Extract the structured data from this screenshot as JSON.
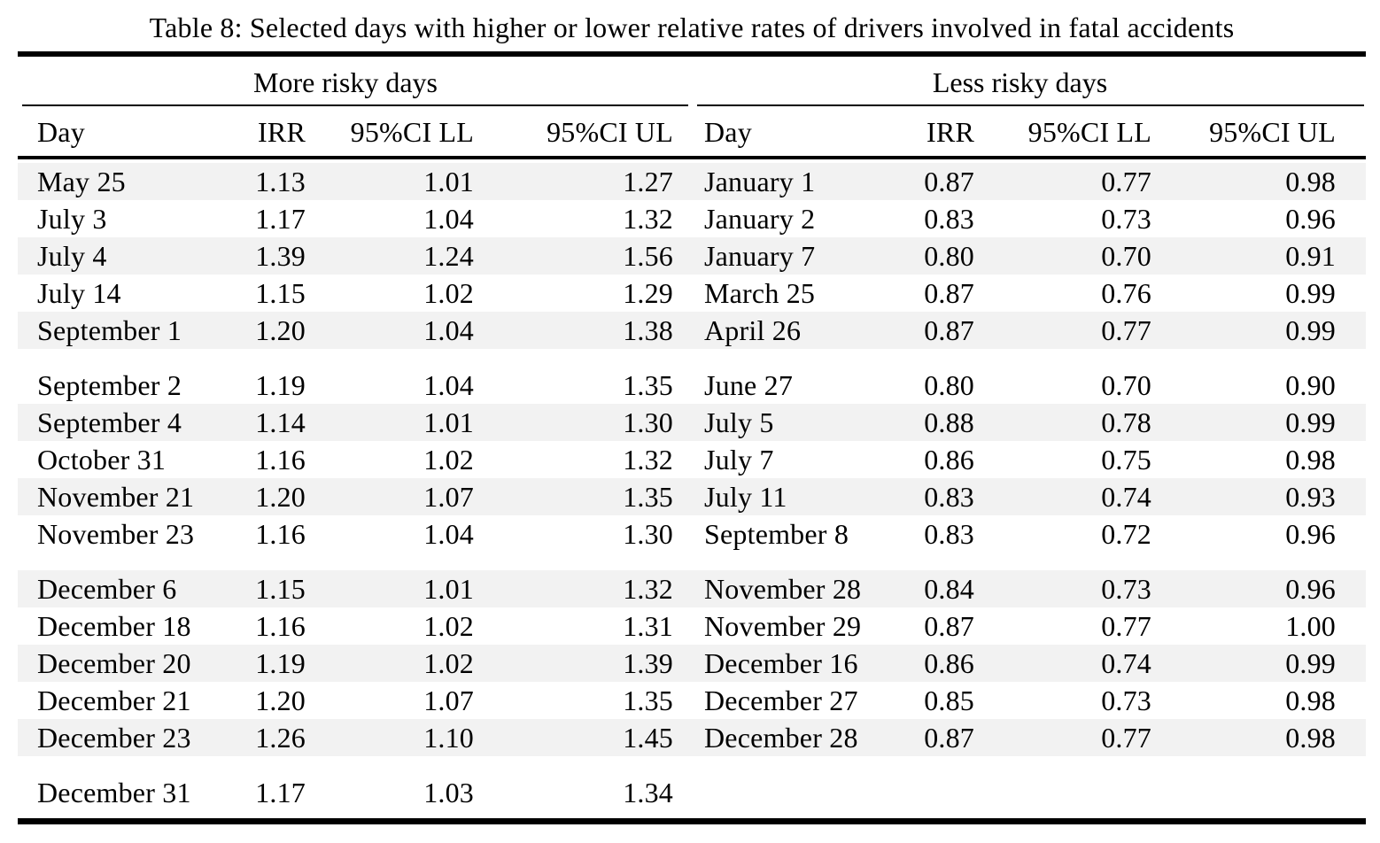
{
  "caption": "Table 8: Selected days with higher or lower relative rates of drivers involved in fatal accidents",
  "groups": [
    {
      "label": "More risky days"
    },
    {
      "label": "Less risky days"
    }
  ],
  "columns": [
    "Day",
    "IRR",
    "95%CI LL",
    "95%CI UL"
  ],
  "colors": {
    "stripe": "#f2f2f2",
    "rule": "#000000",
    "text": "#000000",
    "background": "#ffffff"
  },
  "more_risky": {
    "rows": [
      {
        "day": "May 25",
        "irr": "1.13",
        "ci_ll": "1.01",
        "ci_ul": "1.27"
      },
      {
        "day": "July 3",
        "irr": "1.17",
        "ci_ll": "1.04",
        "ci_ul": "1.32"
      },
      {
        "day": "July 4",
        "irr": "1.39",
        "ci_ll": "1.24",
        "ci_ul": "1.56"
      },
      {
        "day": "July 14",
        "irr": "1.15",
        "ci_ll": "1.02",
        "ci_ul": "1.29"
      },
      {
        "day": "September 1",
        "irr": "1.20",
        "ci_ll": "1.04",
        "ci_ul": "1.38"
      },
      {
        "day": "September 2",
        "irr": "1.19",
        "ci_ll": "1.04",
        "ci_ul": "1.35"
      },
      {
        "day": "September 4",
        "irr": "1.14",
        "ci_ll": "1.01",
        "ci_ul": "1.30"
      },
      {
        "day": "October 31",
        "irr": "1.16",
        "ci_ll": "1.02",
        "ci_ul": "1.32"
      },
      {
        "day": "November 21",
        "irr": "1.20",
        "ci_ll": "1.07",
        "ci_ul": "1.35"
      },
      {
        "day": "November 23",
        "irr": "1.16",
        "ci_ll": "1.04",
        "ci_ul": "1.30"
      },
      {
        "day": "December 6",
        "irr": "1.15",
        "ci_ll": "1.01",
        "ci_ul": "1.32"
      },
      {
        "day": "December 18",
        "irr": "1.16",
        "ci_ll": "1.02",
        "ci_ul": "1.31"
      },
      {
        "day": "December 20",
        "irr": "1.19",
        "ci_ll": "1.02",
        "ci_ul": "1.39"
      },
      {
        "day": "December 21",
        "irr": "1.20",
        "ci_ll": "1.07",
        "ci_ul": "1.35"
      },
      {
        "day": "December 23",
        "irr": "1.26",
        "ci_ll": "1.10",
        "ci_ul": "1.45"
      },
      {
        "day": "December 31",
        "irr": "1.17",
        "ci_ll": "1.03",
        "ci_ul": "1.34"
      }
    ]
  },
  "less_risky": {
    "rows": [
      {
        "day": "January 1",
        "irr": "0.87",
        "ci_ll": "0.77",
        "ci_ul": "0.98"
      },
      {
        "day": "January 2",
        "irr": "0.83",
        "ci_ll": "0.73",
        "ci_ul": "0.96"
      },
      {
        "day": "January 7",
        "irr": "0.80",
        "ci_ll": "0.70",
        "ci_ul": "0.91"
      },
      {
        "day": "March 25",
        "irr": "0.87",
        "ci_ll": "0.76",
        "ci_ul": "0.99"
      },
      {
        "day": "April 26",
        "irr": "0.87",
        "ci_ll": "0.77",
        "ci_ul": "0.99"
      },
      {
        "day": "June 27",
        "irr": "0.80",
        "ci_ll": "0.70",
        "ci_ul": "0.90"
      },
      {
        "day": "July 5",
        "irr": "0.88",
        "ci_ll": "0.78",
        "ci_ul": "0.99"
      },
      {
        "day": "July 7",
        "irr": "0.86",
        "ci_ll": "0.75",
        "ci_ul": "0.98"
      },
      {
        "day": "July 11",
        "irr": "0.83",
        "ci_ll": "0.74",
        "ci_ul": "0.93"
      },
      {
        "day": "September 8",
        "irr": "0.83",
        "ci_ll": "0.72",
        "ci_ul": "0.96"
      },
      {
        "day": "November 28",
        "irr": "0.84",
        "ci_ll": "0.73",
        "ci_ul": "0.96"
      },
      {
        "day": "November 29",
        "irr": "0.87",
        "ci_ll": "0.77",
        "ci_ul": "1.00"
      },
      {
        "day": "December 16",
        "irr": "0.86",
        "ci_ll": "0.74",
        "ci_ul": "0.99"
      },
      {
        "day": "December 27",
        "irr": "0.85",
        "ci_ll": "0.73",
        "ci_ul": "0.98"
      },
      {
        "day": "December 28",
        "irr": "0.87",
        "ci_ll": "0.77",
        "ci_ul": "0.98"
      }
    ]
  },
  "layout": {
    "block_size": 5,
    "stripe_pattern": "odd rows shaded"
  }
}
